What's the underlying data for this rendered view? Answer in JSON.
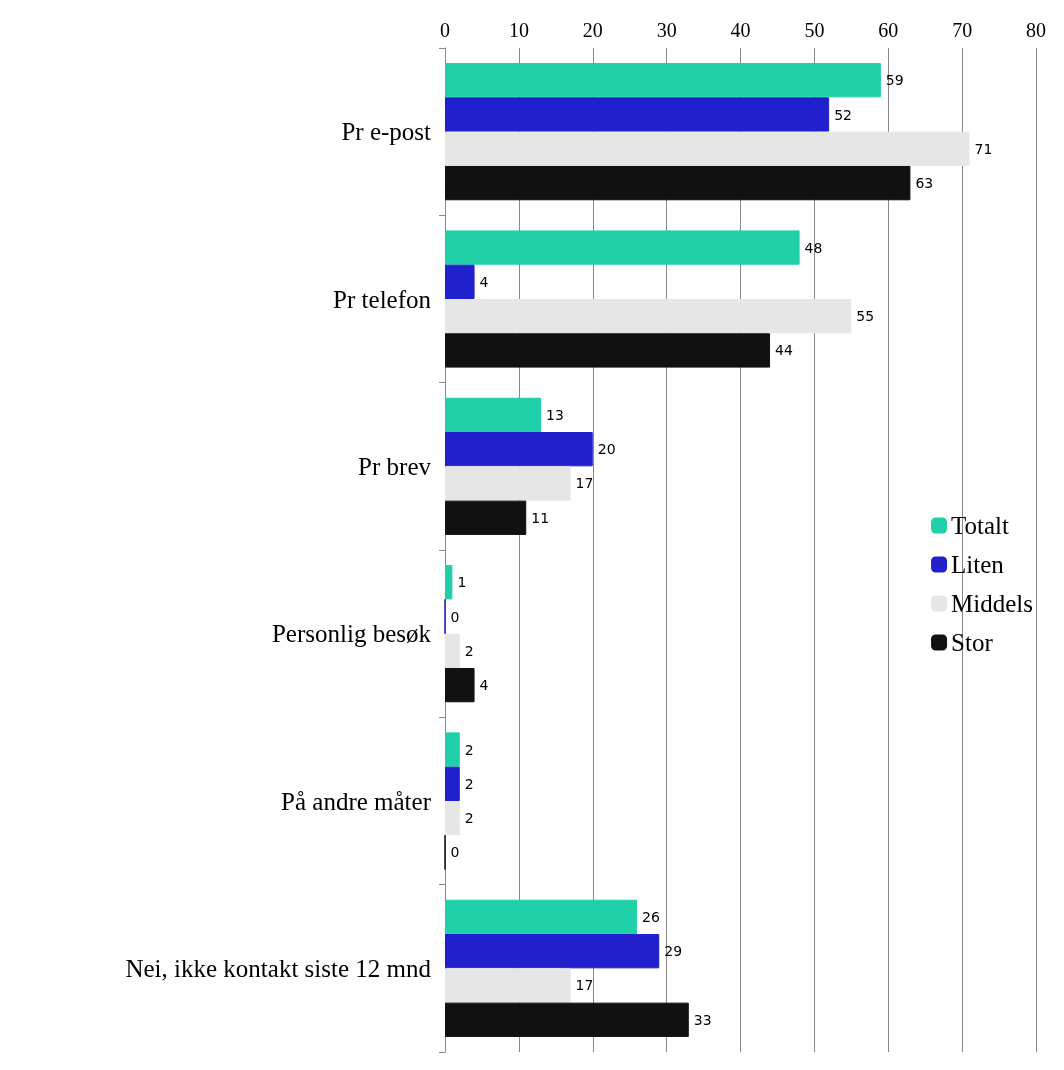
{
  "chart_data": {
    "type": "bar",
    "orientation": "horizontal",
    "categories": [
      "Pr e-post",
      "Pr telefon",
      "Pr brev",
      "Personlig besøk",
      "På andre måter",
      "Nei, ikke kontakt siste 12 mnd"
    ],
    "series": [
      {
        "name": "Totalt",
        "color": "#20d0a8",
        "values": [
          59,
          48,
          13,
          1,
          2,
          26
        ]
      },
      {
        "name": "Liten",
        "color": "#2020cc",
        "values": [
          52,
          4,
          20,
          0,
          2,
          29
        ]
      },
      {
        "name": "Middels",
        "color": "#e6e6e6",
        "values": [
          71,
          55,
          17,
          2,
          2,
          17
        ]
      },
      {
        "name": "Stor",
        "color": "#111111",
        "values": [
          63,
          44,
          11,
          4,
          0,
          33
        ]
      }
    ],
    "xlim": [
      0,
      80
    ],
    "xticks": [
      0,
      10,
      20,
      30,
      40,
      50,
      60,
      70,
      80
    ],
    "grid": "x",
    "legend": "right",
    "data_labels": true
  }
}
